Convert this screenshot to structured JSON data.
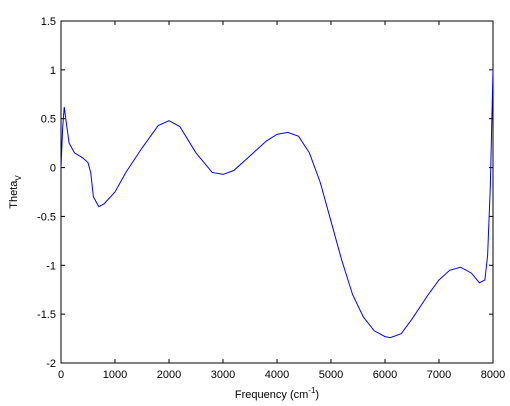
{
  "chart_data": {
    "type": "line",
    "xlabel": [
      "Frequency (cm",
      "-1",
      ")"
    ],
    "ylabel": [
      "Theta",
      "V"
    ],
    "xlim": [
      0,
      8000
    ],
    "xticks": [
      0,
      1000,
      2000,
      3000,
      4000,
      5000,
      6000,
      7000,
      8000
    ],
    "ylim": [
      -2,
      1.5
    ],
    "yticks": [
      -2,
      -1.5,
      -1,
      -0.5,
      0,
      0.5,
      1,
      1.5
    ],
    "grid": false,
    "series": [
      {
        "color": "#0000ff",
        "x": [
          0,
          30,
          60,
          100,
          150,
          250,
          400,
          500,
          550,
          600,
          700,
          800,
          1000,
          1200,
          1500,
          1800,
          2000,
          2200,
          2500,
          2800,
          3000,
          3200,
          3500,
          3800,
          4000,
          4200,
          4400,
          4600,
          4800,
          5000,
          5200,
          5400,
          5600,
          5800,
          6000,
          6100,
          6300,
          6500,
          6800,
          7000,
          7200,
          7400,
          7600,
          7750,
          7850,
          7900,
          7950,
          8000
        ],
        "values": [
          0.0,
          0.4,
          0.62,
          0.45,
          0.25,
          0.15,
          0.1,
          0.05,
          -0.05,
          -0.3,
          -0.4,
          -0.37,
          -0.25,
          -0.05,
          0.2,
          0.43,
          0.48,
          0.42,
          0.15,
          -0.05,
          -0.07,
          -0.03,
          0.12,
          0.27,
          0.34,
          0.36,
          0.32,
          0.15,
          -0.15,
          -0.55,
          -0.95,
          -1.3,
          -1.53,
          -1.67,
          -1.73,
          -1.74,
          -1.7,
          -1.55,
          -1.3,
          -1.15,
          -1.05,
          -1.02,
          -1.08,
          -1.18,
          -1.15,
          -0.9,
          -0.2,
          1.0
        ]
      }
    ]
  }
}
